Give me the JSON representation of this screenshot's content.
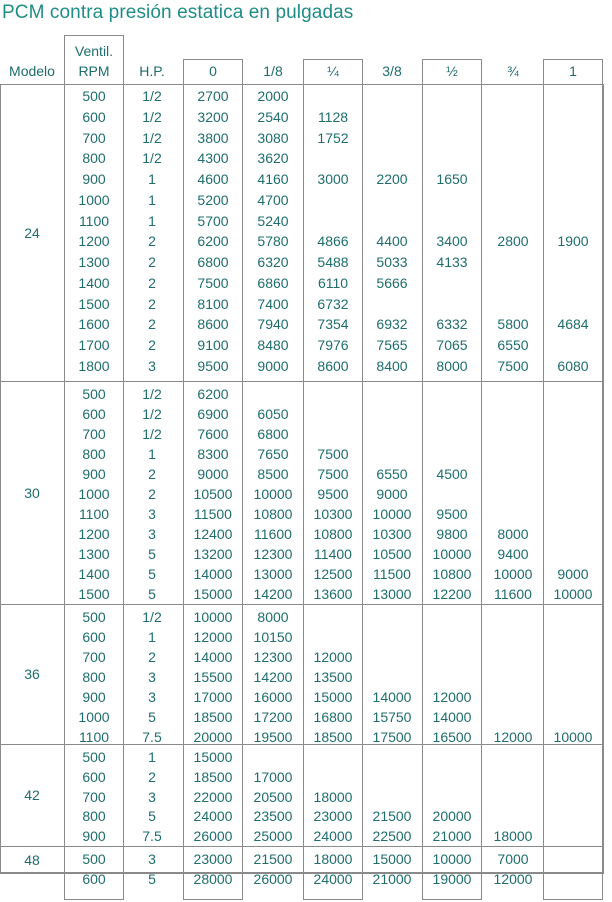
{
  "title": "PCM contra presión estatica en pulgadas",
  "columns": [
    {
      "key": "modelo",
      "label": "Modelo"
    },
    {
      "key": "rpm",
      "label": "RPM",
      "label_top": "Ventil."
    },
    {
      "key": "hp",
      "label": "H.P."
    },
    {
      "key": "p0",
      "label": "0"
    },
    {
      "key": "p18",
      "label": "1/8"
    },
    {
      "key": "p14",
      "label": "¼"
    },
    {
      "key": "p38",
      "label": "3/8"
    },
    {
      "key": "p12",
      "label": "½"
    },
    {
      "key": "p34",
      "label": "¾"
    },
    {
      "key": "p1",
      "label": "1"
    }
  ],
  "groups": [
    {
      "model": "24",
      "rows": [
        [
          "500",
          "1/2",
          "2700",
          "2000",
          "",
          "",
          "",
          "",
          ""
        ],
        [
          "600",
          "1/2",
          "3200",
          "2540",
          "1128",
          "",
          "",
          "",
          ""
        ],
        [
          "700",
          "1/2",
          "3800",
          "3080",
          "1752",
          "",
          "",
          "",
          ""
        ],
        [
          "800",
          "1/2",
          "4300",
          "3620",
          "",
          "",
          "",
          "",
          ""
        ],
        [
          "900",
          "1",
          "4600",
          "4160",
          "3000",
          "2200",
          "1650",
          "",
          ""
        ],
        [
          "1000",
          "1",
          "5200",
          "4700",
          "",
          "",
          "",
          "",
          ""
        ],
        [
          "1100",
          "1",
          "5700",
          "5240",
          "",
          "",
          "",
          "",
          ""
        ],
        [
          "1200",
          "2",
          "6200",
          "5780",
          "4866",
          "4400",
          "3400",
          "2800",
          "1900"
        ],
        [
          "1300",
          "2",
          "6800",
          "6320",
          "5488",
          "5033",
          "4133",
          "",
          ""
        ],
        [
          "1400",
          "2",
          "7500",
          "6860",
          "6110",
          "5666",
          "",
          "",
          ""
        ],
        [
          "1500",
          "2",
          "8100",
          "7400",
          "6732",
          "",
          "",
          "",
          ""
        ],
        [
          "1600",
          "2",
          "8600",
          "7940",
          "7354",
          "6932",
          "6332",
          "5800",
          "4684"
        ],
        [
          "1700",
          "2",
          "9100",
          "8480",
          "7976",
          "7565",
          "7065",
          "6550",
          ""
        ],
        [
          "1800",
          "3",
          "9500",
          "9000",
          "8600",
          "8400",
          "8000",
          "7500",
          "6080"
        ]
      ]
    },
    {
      "model": "30",
      "rows": [
        [
          "500",
          "1/2",
          "6200",
          "",
          "",
          "",
          "",
          "",
          ""
        ],
        [
          "600",
          "1/2",
          "6900",
          "6050",
          "",
          "",
          "",
          "",
          ""
        ],
        [
          "700",
          "1/2",
          "7600",
          "6800",
          "",
          "",
          "",
          "",
          ""
        ],
        [
          "800",
          "1",
          "8300",
          "7650",
          "7500",
          "",
          "",
          "",
          ""
        ],
        [
          "900",
          "2",
          "9000",
          "8500",
          "7500",
          "6550",
          "4500",
          "",
          ""
        ],
        [
          "1000",
          "2",
          "10500",
          "10000",
          "9500",
          "9000",
          "",
          "",
          ""
        ],
        [
          "1100",
          "3",
          "11500",
          "10800",
          "10300",
          "10000",
          "9500",
          "",
          ""
        ],
        [
          "1200",
          "3",
          "12400",
          "11600",
          "10800",
          "10300",
          "9800",
          "8000",
          ""
        ],
        [
          "1300",
          "5",
          "13200",
          "12300",
          "11400",
          "10500",
          "10000",
          "9400",
          ""
        ],
        [
          "1400",
          "5",
          "14000",
          "13000",
          "12500",
          "11500",
          "10800",
          "10000",
          "9000"
        ],
        [
          "1500",
          "5",
          "15000",
          "14200",
          "13600",
          "13000",
          "12200",
          "11600",
          "10000"
        ]
      ]
    },
    {
      "model": "36",
      "rows": [
        [
          "500",
          "1/2",
          "10000",
          "8000",
          "",
          "",
          "",
          "",
          ""
        ],
        [
          "600",
          "1",
          "12000",
          "10150",
          "",
          "",
          "",
          "",
          ""
        ],
        [
          "700",
          "2",
          "14000",
          "12300",
          "12000",
          "",
          "",
          "",
          ""
        ],
        [
          "800",
          "3",
          "15500",
          "14200",
          "13500",
          "",
          "",
          "",
          ""
        ],
        [
          "900",
          "3",
          "17000",
          "16000",
          "15000",
          "14000",
          "12000",
          "",
          ""
        ],
        [
          "1000",
          "5",
          "18500",
          "17200",
          "16800",
          "15750",
          "14000",
          "",
          ""
        ],
        [
          "1100",
          "7.5",
          "20000",
          "19500",
          "18500",
          "17500",
          "16500",
          "12000",
          "10000"
        ]
      ]
    },
    {
      "model": "42",
      "rows": [
        [
          "500",
          "1",
          "15000",
          "",
          "",
          "",
          "",
          "",
          ""
        ],
        [
          "600",
          "2",
          "18500",
          "17000",
          "",
          "",
          "",
          "",
          ""
        ],
        [
          "700",
          "3",
          "22000",
          "20500",
          "18000",
          "",
          "",
          "",
          ""
        ],
        [
          "800",
          "5",
          "24000",
          "23500",
          "23000",
          "21500",
          "20000",
          "",
          ""
        ],
        [
          "900",
          "7.5",
          "26000",
          "25000",
          "24000",
          "22500",
          "21000",
          "18000",
          ""
        ]
      ]
    },
    {
      "model": "48",
      "rows": [
        [
          "500",
          "3",
          "23000",
          "21500",
          "18000",
          "15000",
          "10000",
          "7000",
          ""
        ],
        [
          "600",
          "5",
          "28000",
          "26000",
          "24000",
          "21000",
          "19000",
          "12000",
          ""
        ]
      ]
    }
  ]
}
